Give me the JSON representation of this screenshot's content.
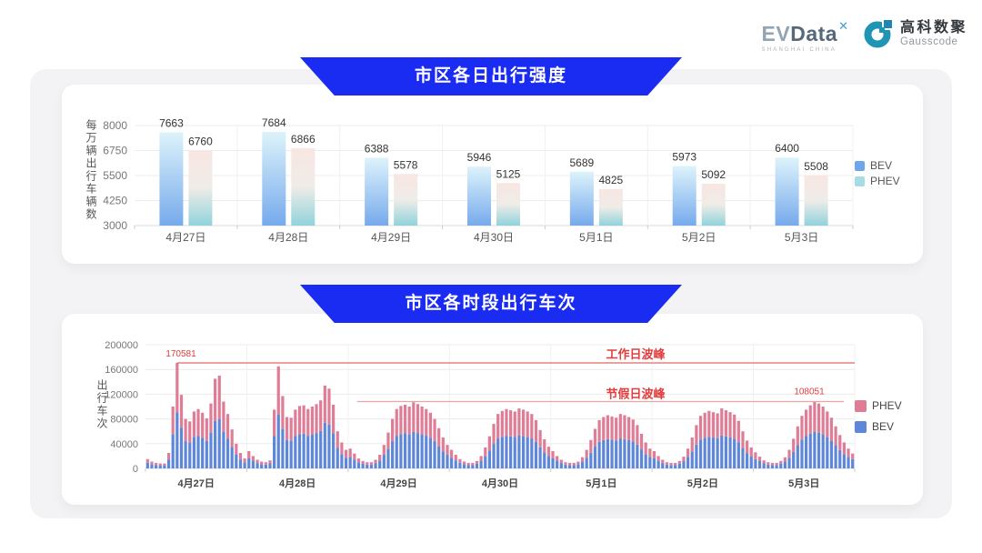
{
  "brand": {
    "evdata": {
      "name_ev": "EV",
      "name_data": "Data",
      "sup_mark": "✕",
      "tagline": "SHANGHAI CHINA"
    },
    "gausscode": {
      "cn": "高科数聚",
      "en": "Gausscode"
    }
  },
  "colors": {
    "banner_blue": "#1a2bf2",
    "panel_gray": "#f3f3f5",
    "bev_gradient": [
      "#ddf3fb",
      "#76aaec"
    ],
    "phev_gradient": [
      "#f8e6e2",
      "#efece8",
      "#90d3db"
    ],
    "bev_legend": "#6fa6ea",
    "phev_legend": "#a6dce5",
    "bev2": "#5e87da",
    "phev2": "#e07d96",
    "annotation": "#e23c3c",
    "line_workday": "#e26868",
    "line_holiday": "#eda3a3",
    "gausscode_teal": "#2094b4"
  },
  "chart_data": [
    {
      "type": "bar",
      "title": "市区各日出行强度",
      "ylabel": "每万辆出行车辆数",
      "ylim": [
        3000,
        8000
      ],
      "yticks": [
        3000,
        4250,
        5500,
        6750,
        8000
      ],
      "grid": true,
      "legend_position": "right",
      "categories": [
        "4月27日",
        "4月28日",
        "4月29日",
        "4月30日",
        "5月1日",
        "5月2日",
        "5月3日"
      ],
      "series": [
        {
          "name": "BEV",
          "values": [
            7663,
            7684,
            6388,
            5946,
            5689,
            5973,
            6400
          ]
        },
        {
          "name": "PHEV",
          "values": [
            6760,
            6866,
            5578,
            5125,
            4825,
            5092,
            5508
          ]
        }
      ]
    },
    {
      "type": "bar",
      "stacked": true,
      "title": "市区各时段出行车次",
      "ylabel": "出行车次",
      "ylim": [
        0,
        200000
      ],
      "yticks": [
        0,
        40000,
        80000,
        120000,
        160000,
        200000
      ],
      "grid": true,
      "x_unit": "hour-of-day, 24 bars per date",
      "legend_position": "right",
      "categories": [
        "4月27日",
        "4月28日",
        "4月29日",
        "4月30日",
        "5月1日",
        "5月2日",
        "5月3日"
      ],
      "series": [
        {
          "name": "PHEV",
          "color": "#e07d96",
          "values_by_day": [
            [
              5700,
              4200,
              3400,
              3000,
              3000,
              10500,
              45000,
              80181,
              53600,
              36000,
              34200,
              41400,
              43200,
              40500,
              36400,
              47200,
              68100,
              70500,
              48600,
              39600,
              28300,
              16800,
              10500,
              6100
            ],
            [
              11800,
              7600,
              5300,
              4200,
              3800,
              4900,
              42700,
              77600,
              52600,
              37300,
              36900,
              42700,
              45400,
              45900,
              43200,
              45000,
              46800,
              49500,
              60300,
              58000,
              46300,
              27000,
              18900,
              12600
            ],
            [
              13400,
              10100,
              6100,
              4600,
              3800,
              3800,
              5300,
              9200,
              16000,
              26100,
              36000,
              43200,
              45400,
              46300,
              45000,
              48100,
              46800,
              45000,
              43200,
              40500,
              36000,
              29200,
              22500,
              16000
            ],
            [
              12600,
              9200,
              5700,
              4200,
              3400,
              3400,
              4600,
              7600,
              14300,
              23400,
              32400,
              39600,
              41800,
              43200,
              42300,
              41400,
              43600,
              42700,
              41400,
              39600,
              35100,
              27900,
              21100,
              14700
            ],
            [
              11800,
              7600,
              5300,
              3800,
              3400,
              3400,
              4200,
              6800,
              12600,
              20700,
              28800,
              35100,
              37300,
              38700,
              37800,
              36900,
              39600,
              38700,
              37300,
              35500,
              31500,
              25200,
              18900,
              13400
            ],
            [
              11800,
              7600,
              5300,
              3800,
              3400,
              3400,
              4600,
              7200,
              13400,
              22500,
              31500,
              38200,
              40500,
              41800,
              40900,
              40000,
              43600,
              42300,
              40900,
              39100,
              34600,
              27000,
              20200,
              14300
            ],
            [
              10900,
              7200,
              4900,
              3800,
              3400,
              3400,
              4600,
              6800,
              12600,
              21600,
              30600,
              38200,
              42700,
              45900,
              48651,
              47200,
              45000,
              41400,
              36900,
              30600,
              24300,
              18900,
              13400,
              9100
            ]
          ]
        },
        {
          "name": "BEV",
          "color": "#5e87da",
          "values_by_day": [
            [
              9300,
              6800,
              5600,
              5000,
              5000,
              14500,
              55000,
              90400,
              65400,
              44000,
              41800,
              50600,
              52800,
              49500,
              44600,
              57800,
              76900,
              79500,
              59400,
              48400,
              34700,
              23200,
              14500,
              9900
            ],
            [
              16200,
              12400,
              8700,
              6800,
              6200,
              8100,
              52300,
              87400,
              64400,
              45700,
              45100,
              52300,
              55600,
              56100,
              52800,
              55000,
              57200,
              60500,
              73700,
              71000,
              56700,
              33000,
              23100,
              17400
            ],
            [
              18600,
              13900,
              9900,
              7400,
              6200,
              6200,
              8700,
              12800,
              22000,
              31900,
              44000,
              52800,
              55600,
              56700,
              55000,
              58900,
              57200,
              55000,
              52800,
              49500,
              44000,
              35800,
              27500,
              22000
            ],
            [
              17400,
              12800,
              9300,
              6800,
              5600,
              5600,
              7400,
              12400,
              19700,
              28600,
              39600,
              48400,
              51200,
              52800,
              51700,
              50600,
              53400,
              52300,
              50600,
              48400,
              42900,
              34100,
              25900,
              20300
            ],
            [
              16200,
              12400,
              8700,
              6200,
              5600,
              5600,
              6800,
              11200,
              17400,
              25300,
              35200,
              42900,
              45700,
              47300,
              46200,
              45100,
              48400,
              47300,
              45700,
              43500,
              38500,
              30800,
              23100,
              18600
            ],
            [
              16200,
              12400,
              8700,
              6200,
              5600,
              5600,
              7400,
              11800,
              18600,
              27500,
              38500,
              46800,
              49500,
              51200,
              50100,
              49000,
              53400,
              51700,
              50100,
              47900,
              42400,
              33000,
              24800,
              19700
            ],
            [
              15100,
              11800,
              8100,
              6200,
              5600,
              5600,
              7400,
              11200,
              17400,
              26400,
              37400,
              46800,
              52300,
              56100,
              59400,
              57800,
              55000,
              50600,
              45100,
              37400,
              29700,
              23100,
              18600,
              14900
            ]
          ]
        }
      ],
      "annotations": [
        {
          "text": "工作日波峰",
          "value": 170581,
          "value_label": "170581"
        },
        {
          "text": "节假日波峰",
          "value": 108051,
          "value_label": "108051"
        }
      ]
    }
  ]
}
